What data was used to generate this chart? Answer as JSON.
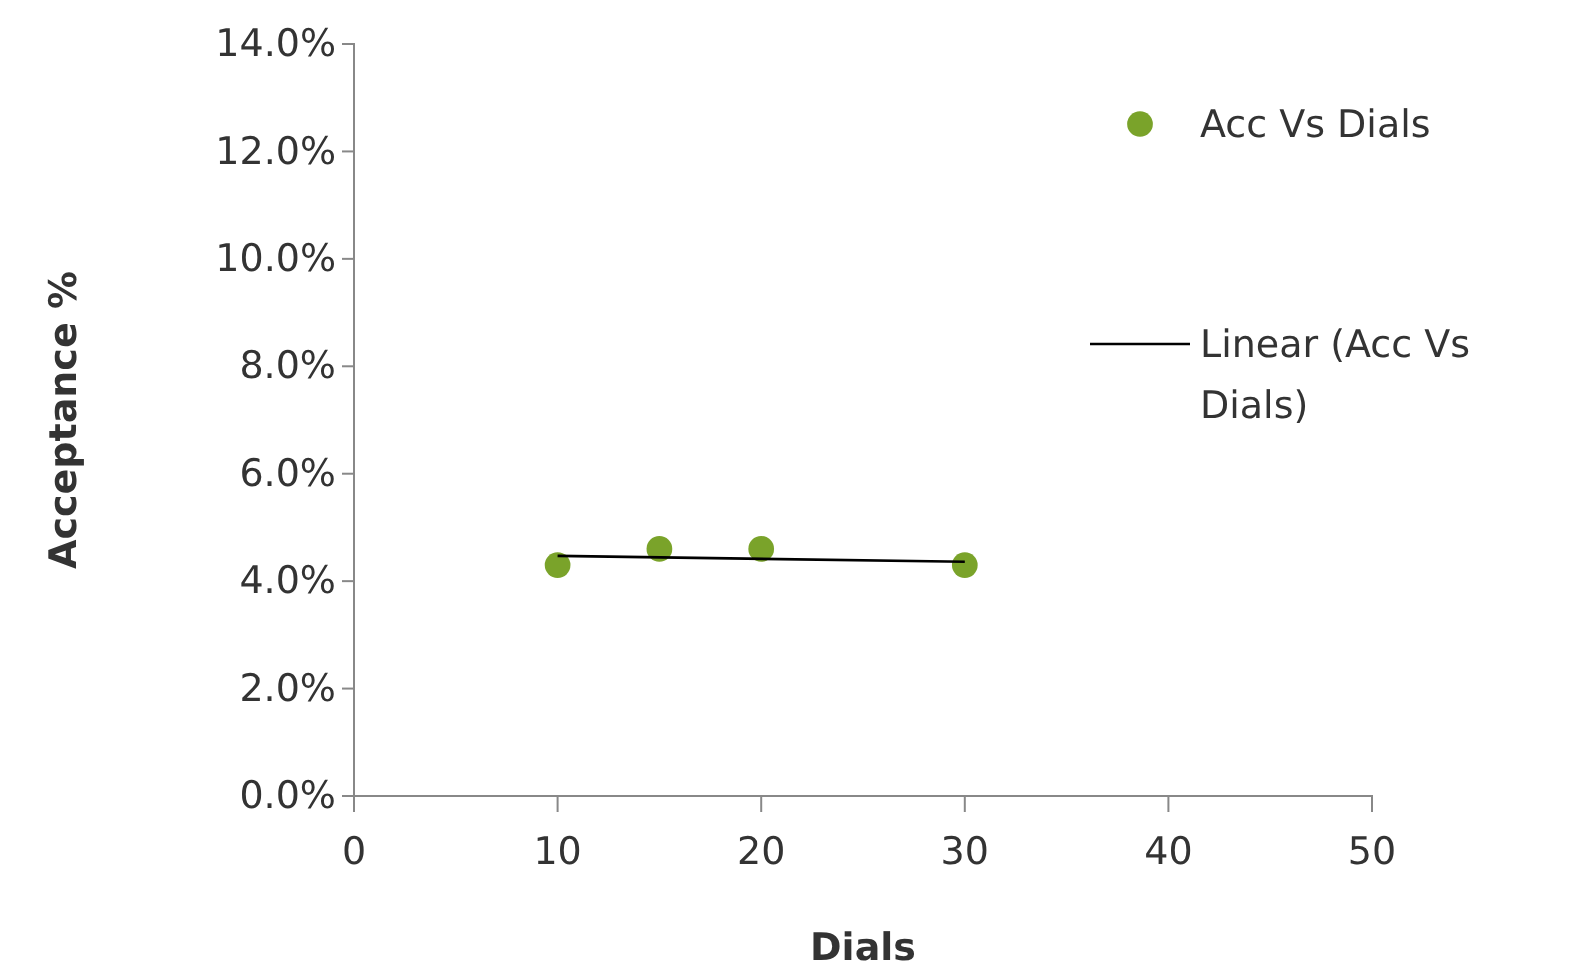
{
  "chart_data": {
    "type": "scatter",
    "xlabel": "Dials",
    "ylabel": "Acceptance %",
    "xlim": [
      0,
      50
    ],
    "xticks": [
      0,
      10,
      20,
      30,
      40,
      50
    ],
    "ylim": [
      0,
      14
    ],
    "yticks": [
      {
        "value": 0,
        "label": "0.0%"
      },
      {
        "value": 2,
        "label": "2.0%"
      },
      {
        "value": 4,
        "label": "4.0%"
      },
      {
        "value": 6,
        "label": "6.0%"
      },
      {
        "value": 8,
        "label": "8.0%"
      },
      {
        "value": 10,
        "label": "10.0%"
      },
      {
        "value": 12,
        "label": "12.0%"
      },
      {
        "value": 14,
        "label": "14.0%"
      }
    ],
    "grid": false,
    "legend": "top right",
    "series": [
      {
        "name": "Acc Vs Dials",
        "marker": "circle",
        "color": "#7aa32a",
        "x": [
          10,
          15,
          20,
          30
        ],
        "values": [
          4.3,
          4.6,
          4.6,
          4.3
        ]
      },
      {
        "name": "Linear (Acc Vs Dials)",
        "type": "line",
        "marker": "none",
        "color": "#000000",
        "x": [
          10,
          30
        ],
        "values": [
          4.47,
          4.36
        ]
      }
    ]
  }
}
